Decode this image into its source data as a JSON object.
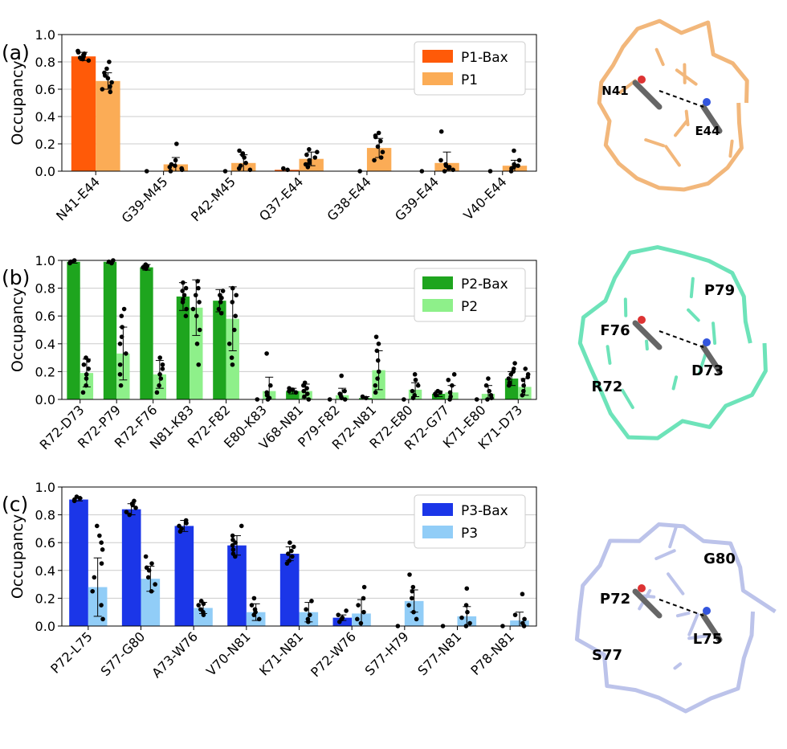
{
  "chart_data": [
    {
      "panel": "(a)",
      "type": "bar",
      "ylabel": "Occupancy",
      "ylim": [
        0,
        1.0
      ],
      "yticks": [
        "0.0",
        "0.2",
        "0.4",
        "0.6",
        "0.8",
        "1.0"
      ],
      "grid": true,
      "legend_position": "top-right",
      "categories": [
        "N41-E44",
        "G39-M45",
        "P42-M45",
        "Q37-E44",
        "G38-E44",
        "G39-E44",
        "V40-E44"
      ],
      "series": [
        {
          "name": "P1-Bax",
          "color": "#ff5a08",
          "values": [
            0.84,
            0.0,
            0.0,
            0.01,
            0.0,
            0.0,
            0.0
          ],
          "err": [
            0.03,
            0.0,
            0.0,
            0.0,
            0.0,
            0.0,
            0.0
          ]
        },
        {
          "name": "P1",
          "color": "#fbac56",
          "values": [
            0.66,
            0.05,
            0.06,
            0.09,
            0.17,
            0.06,
            0.04
          ],
          "err": [
            0.06,
            0.05,
            0.06,
            0.05,
            0.07,
            0.08,
            0.04
          ]
        }
      ],
      "points": [
        [
          [
            0.85,
            0.86,
            0.87,
            0.83,
            0.82,
            0.84,
            0.88,
            0.81
          ],
          [
            0.8,
            0.75,
            0.7,
            0.65,
            0.62,
            0.6,
            0.68,
            0.72,
            0.58
          ]
        ],
        [
          [
            0.0
          ],
          [
            0.2,
            0.08,
            0.05,
            0.03,
            0.02,
            0.01,
            0.0,
            0.04
          ]
        ],
        [
          [
            0.0
          ],
          [
            0.15,
            0.12,
            0.1,
            0.06,
            0.04,
            0.02,
            0.01,
            0.13
          ]
        ],
        [
          [
            0.02,
            0.01
          ],
          [
            0.16,
            0.12,
            0.1,
            0.08,
            0.06,
            0.05,
            0.14,
            0.03
          ]
        ],
        [
          [
            0.0
          ],
          [
            0.28,
            0.25,
            0.22,
            0.18,
            0.14,
            0.1,
            0.08,
            0.26
          ]
        ],
        [
          [
            0.0
          ],
          [
            0.29,
            0.08,
            0.05,
            0.03,
            0.02,
            0.01,
            0.0,
            0.04
          ]
        ],
        [
          [
            0.0
          ],
          [
            0.15,
            0.08,
            0.05,
            0.03,
            0.02,
            0.0,
            0.04
          ]
        ]
      ],
      "molecule": {
        "color": "#f2b77b",
        "labels": [
          "N41",
          "E44"
        ]
      }
    },
    {
      "panel": "(b)",
      "type": "bar",
      "ylabel": "Occupancy",
      "ylim": [
        0,
        1.0
      ],
      "yticks": [
        "0.0",
        "0.2",
        "0.4",
        "0.6",
        "0.8",
        "1.0"
      ],
      "grid": true,
      "legend_position": "top-right",
      "categories": [
        "R72-D73",
        "R72-P79",
        "R72-F76",
        "N81-K83",
        "R72-F82",
        "E80-K83",
        "V68-N81",
        "P79-F82",
        "R72-N81",
        "R72-E80",
        "R72-G77",
        "K71-E80",
        "K71-D73"
      ],
      "series": [
        {
          "name": "P2-Bax",
          "color": "#1ea51e",
          "values": [
            0.99,
            0.99,
            0.95,
            0.74,
            0.71,
            0.0,
            0.06,
            0.0,
            0.01,
            0.0,
            0.04,
            0.0,
            0.15
          ],
          "err": [
            0.01,
            0.01,
            0.02,
            0.1,
            0.08,
            0.0,
            0.02,
            0.0,
            0.01,
            0.0,
            0.02,
            0.0,
            0.05
          ]
        },
        {
          "name": "P2",
          "color": "#8ef08a",
          "values": [
            0.19,
            0.33,
            0.18,
            0.66,
            0.58,
            0.06,
            0.06,
            0.03,
            0.21,
            0.07,
            0.05,
            0.04,
            0.09
          ],
          "err": [
            0.1,
            0.19,
            0.1,
            0.2,
            0.23,
            0.1,
            0.05,
            0.05,
            0.14,
            0.05,
            0.05,
            0.06,
            0.06
          ]
        }
      ],
      "points": [
        [
          [
            0.99,
            0.98,
            1.0,
            0.99
          ],
          [
            0.3,
            0.25,
            0.18,
            0.1,
            0.05,
            0.22,
            0.15,
            0.28
          ]
        ],
        [
          [
            0.99,
            1.0,
            0.98
          ],
          [
            0.65,
            0.6,
            0.52,
            0.4,
            0.33,
            0.25,
            0.18,
            0.1,
            0.45
          ]
        ],
        [
          [
            0.95,
            0.96,
            0.94,
            0.97
          ],
          [
            0.3,
            0.25,
            0.18,
            0.1,
            0.05,
            0.22,
            0.15
          ]
        ],
        [
          [
            0.84,
            0.8,
            0.75,
            0.7,
            0.65,
            0.6,
            0.78,
            0.72
          ],
          [
            0.85,
            0.8,
            0.7,
            0.6,
            0.5,
            0.4,
            0.25,
            0.75,
            0.65
          ]
        ],
        [
          [
            0.78,
            0.75,
            0.7,
            0.65,
            0.62,
            0.73
          ],
          [
            0.8,
            0.7,
            0.6,
            0.5,
            0.4,
            0.3,
            0.25,
            0.75
          ]
        ],
        [
          [
            0.0
          ],
          [
            0.33,
            0.1,
            0.05,
            0.03,
            0.01,
            0.0
          ]
        ],
        [
          [
            0.06,
            0.05,
            0.07,
            0.08
          ],
          [
            0.12,
            0.1,
            0.08,
            0.06,
            0.04,
            0.02,
            0.0
          ]
        ],
        [
          [
            0.0
          ],
          [
            0.17,
            0.06,
            0.04,
            0.02,
            0.01,
            0.0
          ]
        ],
        [
          [
            0.01,
            0.02
          ],
          [
            0.45,
            0.4,
            0.35,
            0.28,
            0.2,
            0.15,
            0.1,
            0.05
          ]
        ],
        [
          [
            0.0
          ],
          [
            0.18,
            0.14,
            0.1,
            0.06,
            0.03,
            0.01
          ]
        ],
        [
          [
            0.06,
            0.04,
            0.03,
            0.05
          ],
          [
            0.18,
            0.14,
            0.1,
            0.05,
            0.02,
            0.0
          ]
        ],
        [
          [
            0.0
          ],
          [
            0.15,
            0.1,
            0.06,
            0.03,
            0.01,
            0.0
          ]
        ],
        [
          [
            0.26,
            0.22,
            0.18,
            0.15,
            0.12,
            0.1,
            0.2
          ],
          [
            0.22,
            0.18,
            0.14,
            0.1,
            0.06,
            0.03,
            0.16
          ]
        ]
      ],
      "molecule": {
        "color": "#6de3b9",
        "labels": [
          "F76",
          "D73",
          "P79",
          "R72"
        ]
      }
    },
    {
      "panel": "(c)",
      "type": "bar",
      "ylabel": "Occupancy",
      "ylim": [
        0,
        1.0
      ],
      "yticks": [
        "0.0",
        "0.2",
        "0.4",
        "0.6",
        "0.8",
        "1.0"
      ],
      "grid": true,
      "legend_position": "top-right",
      "categories": [
        "P72-L75",
        "S77-G80",
        "A73-W76",
        "V70-N81",
        "K71-N81",
        "P72-W76",
        "S77-H79",
        "S77-N81",
        "P78-N81"
      ],
      "series": [
        {
          "name": "P3-Bax",
          "color": "#1b36e8",
          "values": [
            0.91,
            0.84,
            0.72,
            0.58,
            0.52,
            0.06,
            0.0,
            0.0,
            0.0
          ],
          "err": [
            0.01,
            0.04,
            0.04,
            0.07,
            0.05,
            0.02,
            0.0,
            0.0,
            0.0
          ]
        },
        {
          "name": "P3",
          "color": "#91cdf7",
          "values": [
            0.28,
            0.34,
            0.13,
            0.1,
            0.1,
            0.09,
            0.18,
            0.07,
            0.04
          ],
          "err": [
            0.21,
            0.09,
            0.04,
            0.06,
            0.07,
            0.1,
            0.08,
            0.07,
            0.06
          ]
        }
      ],
      "points": [
        [
          [
            0.92,
            0.91,
            0.9,
            0.93
          ],
          [
            0.72,
            0.65,
            0.55,
            0.45,
            0.35,
            0.25,
            0.15,
            0.05,
            0.6
          ]
        ],
        [
          [
            0.9,
            0.88,
            0.85,
            0.82,
            0.8,
            0.87
          ],
          [
            0.5,
            0.45,
            0.4,
            0.35,
            0.3,
            0.25,
            0.42
          ]
        ],
        [
          [
            0.76,
            0.74,
            0.72,
            0.7,
            0.68
          ],
          [
            0.18,
            0.15,
            0.12,
            0.1,
            0.08,
            0.16
          ]
        ],
        [
          [
            0.72,
            0.65,
            0.6,
            0.58,
            0.55,
            0.52,
            0.5,
            0.62
          ],
          [
            0.2,
            0.15,
            0.12,
            0.08,
            0.05,
            0.1
          ]
        ],
        [
          [
            0.6,
            0.57,
            0.54,
            0.52,
            0.5,
            0.47,
            0.45
          ],
          [
            0.18,
            0.12,
            0.08,
            0.05,
            0.03
          ]
        ],
        [
          [
            0.11,
            0.08,
            0.06,
            0.05,
            0.03
          ],
          [
            0.28,
            0.2,
            0.15,
            0.1,
            0.05,
            0.02
          ]
        ],
        [
          [
            0.0
          ],
          [
            0.37,
            0.28,
            0.2,
            0.15,
            0.1,
            0.05,
            0.25
          ]
        ],
        [
          [
            0.0
          ],
          [
            0.27,
            0.15,
            0.1,
            0.06,
            0.02,
            0.0
          ]
        ],
        [
          [
            0.0
          ],
          [
            0.23,
            0.08,
            0.05,
            0.02,
            0.0
          ]
        ]
      ],
      "molecule": {
        "color": "#bcc3ea",
        "labels": [
          "P72",
          "L75",
          "G80",
          "S77"
        ]
      }
    }
  ]
}
